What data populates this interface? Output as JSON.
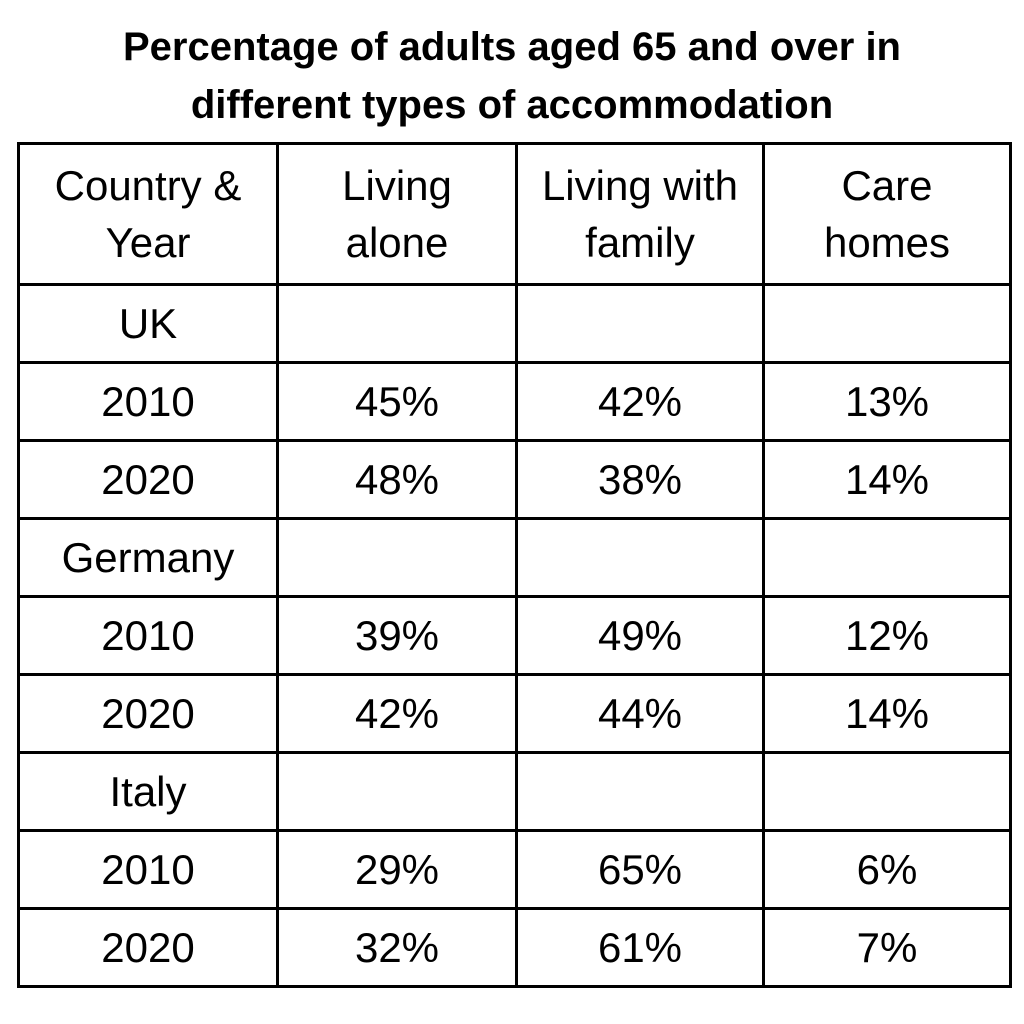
{
  "chart_data": {
    "type": "table",
    "title_lines": [
      "Percentage of adults aged 65 and over in",
      "different types of accommodation"
    ],
    "columns": [
      [
        "Country &",
        "Year"
      ],
      [
        "Living",
        "alone"
      ],
      [
        "Living with",
        "family"
      ],
      [
        "Care",
        "homes"
      ]
    ],
    "rows": [
      [
        "UK",
        "",
        "",
        ""
      ],
      [
        "2010",
        "45%",
        "42%",
        "13%"
      ],
      [
        "2020",
        "48%",
        "38%",
        "14%"
      ],
      [
        "Germany",
        "",
        "",
        ""
      ],
      [
        "2010",
        "39%",
        "49%",
        "12%"
      ],
      [
        "2020",
        "42%",
        "44%",
        "14%"
      ],
      [
        "Italy",
        "",
        "",
        ""
      ],
      [
        "2010",
        "29%",
        "65%",
        "6%"
      ],
      [
        "2020",
        "32%",
        "61%",
        "7%"
      ]
    ]
  }
}
